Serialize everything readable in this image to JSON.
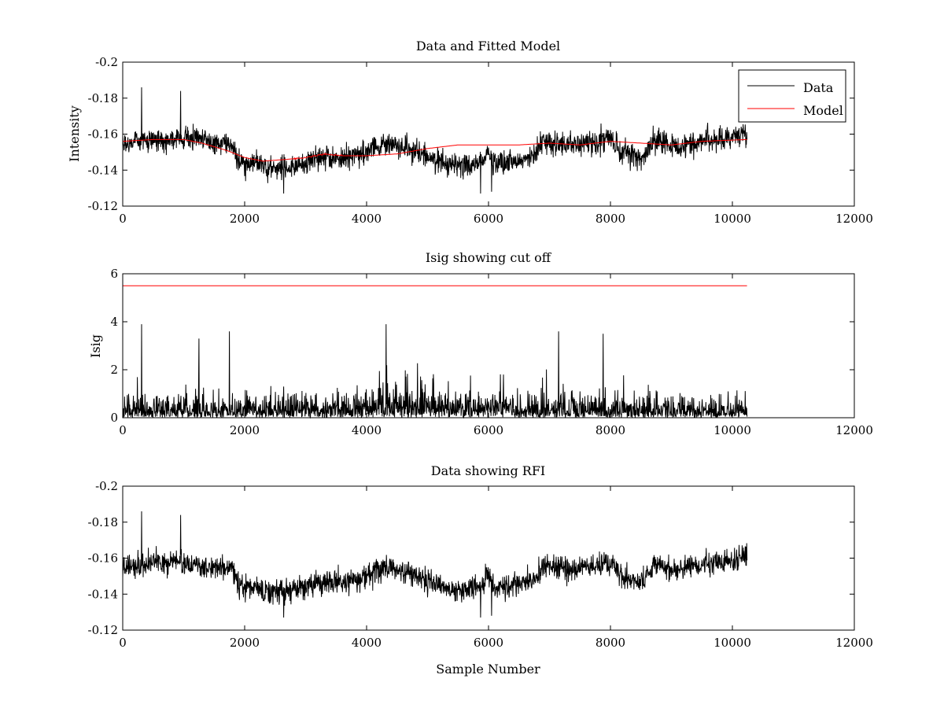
{
  "chart_data": [
    {
      "type": "line",
      "title": "Data and Fitted Model",
      "xlabel": "",
      "ylabel": "Intensity",
      "xlim": [
        0,
        12000
      ],
      "ylim": [
        -0.2,
        -0.12
      ],
      "y_axis_reversed": true,
      "xticks": [
        0,
        2000,
        4000,
        6000,
        8000,
        10000,
        12000
      ],
      "yticks": [
        -0.2,
        -0.18,
        -0.16,
        -0.14,
        -0.12
      ],
      "legend_position": "top-right",
      "series": [
        {
          "name": "Data",
          "color": "#000000",
          "style": "noisy",
          "n_samples": 10240,
          "baseline": [
            [
              0,
              -0.155
            ],
            [
              500,
              -0.157
            ],
            [
              1000,
              -0.158
            ],
            [
              1500,
              -0.155
            ],
            [
              1800,
              -0.154
            ],
            [
              1900,
              -0.145
            ],
            [
              2300,
              -0.142
            ],
            [
              2700,
              -0.141
            ],
            [
              3200,
              -0.146
            ],
            [
              3700,
              -0.147
            ],
            [
              4000,
              -0.15
            ],
            [
              4300,
              -0.155
            ],
            [
              4700,
              -0.152
            ],
            [
              5000,
              -0.148
            ],
            [
              5300,
              -0.143
            ],
            [
              5700,
              -0.143
            ],
            [
              5900,
              -0.145
            ],
            [
              6000,
              -0.15
            ],
            [
              6100,
              -0.143
            ],
            [
              6500,
              -0.145
            ],
            [
              6800,
              -0.15
            ],
            [
              6900,
              -0.156
            ],
            [
              7300,
              -0.154
            ],
            [
              7700,
              -0.155
            ],
            [
              8000,
              -0.158
            ],
            [
              8150,
              -0.15
            ],
            [
              8500,
              -0.146
            ],
            [
              8650,
              -0.152
            ],
            [
              8700,
              -0.157
            ],
            [
              9000,
              -0.153
            ],
            [
              9500,
              -0.156
            ],
            [
              10240,
              -0.16
            ]
          ],
          "noise_amplitude": 0.012,
          "spikes": [
            [
              310,
              -0.186
            ],
            [
              950,
              -0.184
            ],
            [
              2640,
              -0.127
            ],
            [
              5870,
              -0.127
            ],
            [
              6050,
              -0.128
            ]
          ]
        },
        {
          "name": "Model",
          "color": "#ff0000",
          "style": "smooth",
          "points": [
            [
              0,
              -0.156
            ],
            [
              500,
              -0.157
            ],
            [
              1000,
              -0.157
            ],
            [
              1300,
              -0.155
            ],
            [
              1700,
              -0.151
            ],
            [
              2000,
              -0.147
            ],
            [
              2300,
              -0.145
            ],
            [
              2700,
              -0.146
            ],
            [
              3000,
              -0.147
            ],
            [
              3300,
              -0.149
            ],
            [
              3600,
              -0.148
            ],
            [
              4000,
              -0.148
            ],
            [
              4500,
              -0.149
            ],
            [
              5000,
              -0.152
            ],
            [
              5500,
              -0.154
            ],
            [
              6000,
              -0.154
            ],
            [
              6500,
              -0.154
            ],
            [
              7000,
              -0.155
            ],
            [
              7500,
              -0.154
            ],
            [
              8000,
              -0.156
            ],
            [
              8500,
              -0.155
            ],
            [
              9000,
              -0.154
            ],
            [
              9500,
              -0.156
            ],
            [
              10240,
              -0.157
            ]
          ]
        }
      ]
    },
    {
      "type": "line",
      "title": "Isig showing cut off",
      "xlabel": "",
      "ylabel": "Isig",
      "xlim": [
        0,
        12000
      ],
      "ylim": [
        0,
        6
      ],
      "xticks": [
        0,
        2000,
        4000,
        6000,
        8000,
        10000,
        12000
      ],
      "yticks": [
        0,
        2,
        4,
        6
      ],
      "series": [
        {
          "color": "#000000",
          "style": "abs-noise",
          "n_samples": 10240,
          "level": [
            [
              0,
              0.8
            ],
            [
              2000,
              0.7
            ],
            [
              4000,
              0.8
            ],
            [
              4300,
              1.2
            ],
            [
              4700,
              1.0
            ],
            [
              6000,
              0.9
            ],
            [
              8000,
              0.8
            ],
            [
              9000,
              0.7
            ],
            [
              10240,
              0.6
            ]
          ],
          "spikes": [
            [
              310,
              3.9
            ],
            [
              1250,
              3.3
            ],
            [
              1750,
              3.6
            ],
            [
              4320,
              3.9
            ],
            [
              7150,
              3.6
            ],
            [
              7880,
              3.5
            ]
          ]
        },
        {
          "name": "cut off",
          "color": "#ff0000",
          "style": "flat",
          "points": [
            [
              0,
              5.5
            ],
            [
              10240,
              5.5
            ]
          ]
        }
      ]
    },
    {
      "type": "line",
      "title": "Data showing RFI",
      "xlabel": "Sample Number",
      "ylabel": "",
      "xlim": [
        0,
        12000
      ],
      "ylim": [
        -0.2,
        -0.12
      ],
      "y_axis_reversed": true,
      "xticks": [
        0,
        2000,
        4000,
        6000,
        8000,
        10000,
        12000
      ],
      "yticks": [
        -0.2,
        -0.18,
        -0.16,
        -0.14,
        -0.12
      ],
      "series": [
        {
          "color": "#000000",
          "style": "noisy",
          "n_samples": 10240,
          "baseline": [
            [
              0,
              -0.155
            ],
            [
              500,
              -0.157
            ],
            [
              1000,
              -0.158
            ],
            [
              1500,
              -0.155
            ],
            [
              1800,
              -0.154
            ],
            [
              1900,
              -0.145
            ],
            [
              2300,
              -0.142
            ],
            [
              2700,
              -0.141
            ],
            [
              3200,
              -0.146
            ],
            [
              3700,
              -0.147
            ],
            [
              4000,
              -0.15
            ],
            [
              4300,
              -0.155
            ],
            [
              4700,
              -0.152
            ],
            [
              5000,
              -0.148
            ],
            [
              5300,
              -0.143
            ],
            [
              5700,
              -0.143
            ],
            [
              5900,
              -0.145
            ],
            [
              6000,
              -0.15
            ],
            [
              6100,
              -0.143
            ],
            [
              6500,
              -0.145
            ],
            [
              6800,
              -0.15
            ],
            [
              6900,
              -0.156
            ],
            [
              7300,
              -0.154
            ],
            [
              7700,
              -0.155
            ],
            [
              8000,
              -0.158
            ],
            [
              8150,
              -0.15
            ],
            [
              8500,
              -0.146
            ],
            [
              8650,
              -0.152
            ],
            [
              8700,
              -0.157
            ],
            [
              9000,
              -0.153
            ],
            [
              9500,
              -0.156
            ],
            [
              10240,
              -0.16
            ]
          ],
          "noise_amplitude": 0.012,
          "spikes": [
            [
              310,
              -0.186
            ],
            [
              950,
              -0.184
            ],
            [
              2640,
              -0.127
            ],
            [
              5870,
              -0.127
            ],
            [
              6050,
              -0.128
            ]
          ]
        }
      ]
    }
  ]
}
